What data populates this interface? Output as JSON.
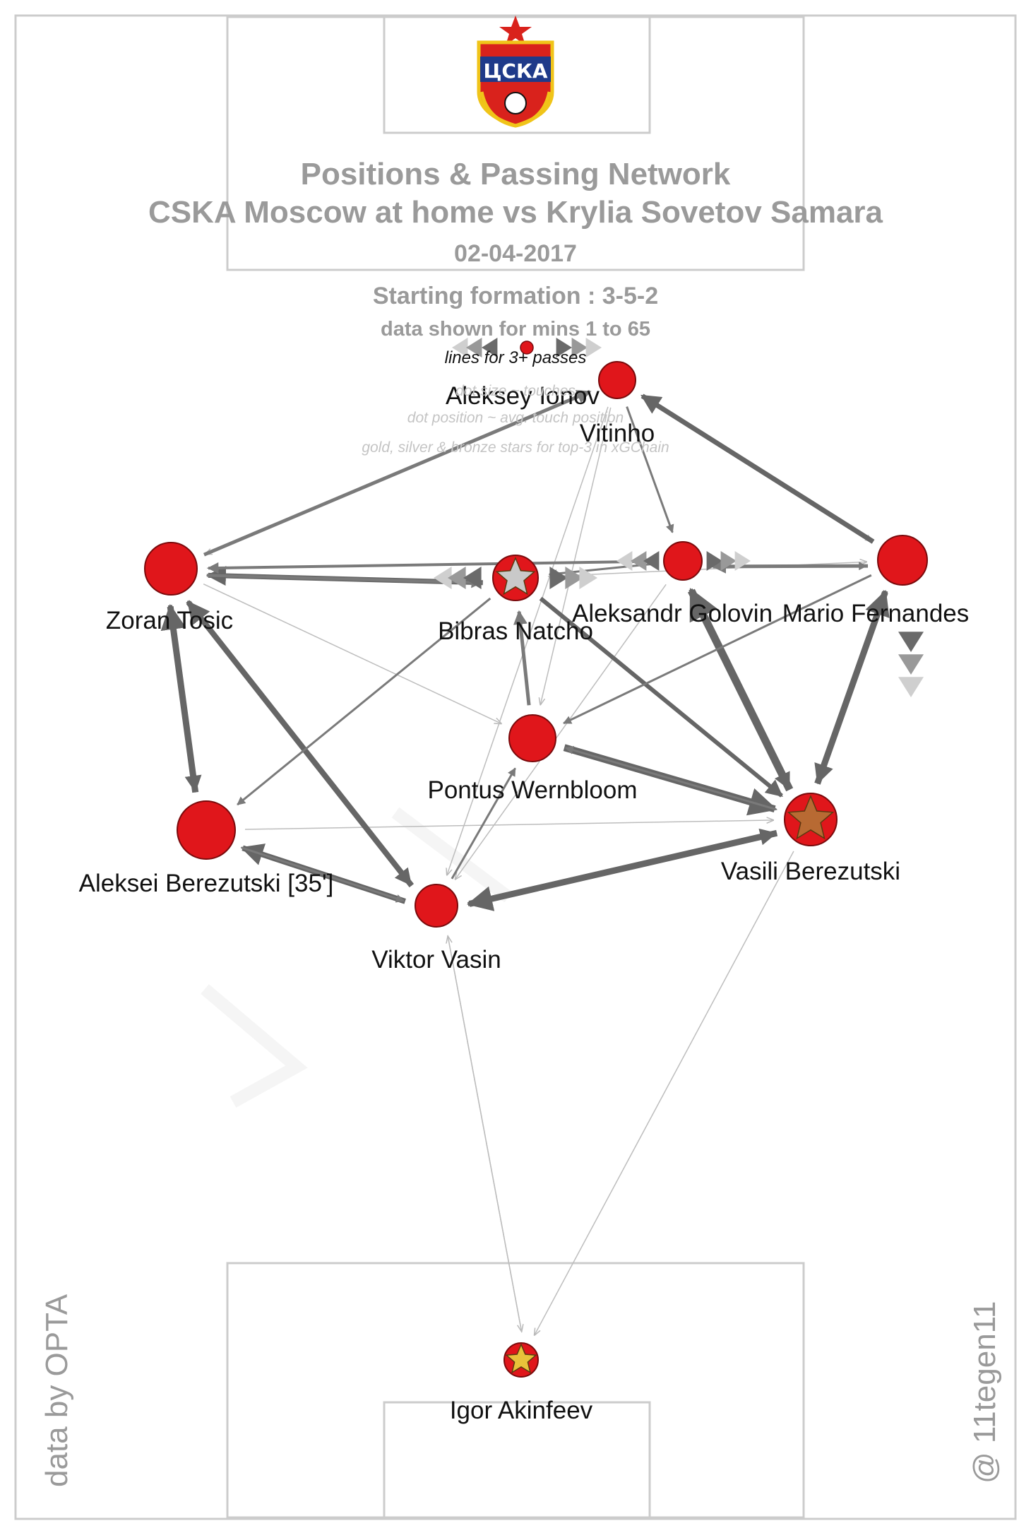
{
  "header": {
    "title": "Positions & Passing Network",
    "subtitle": "CSKA Moscow at home vs Krylia Sovetov Samara",
    "date": "02-04-2017",
    "formation": "Starting formation : 3-5-2",
    "minutes": "data shown for mins 1 to 65"
  },
  "legend": {
    "lines": "lines for 3+ passes",
    "dot_size": "dot size ~ touches",
    "dot_position": "dot position ~ avg. touch position",
    "stars": "gold, silver & bronze stars for top-3 in xGChain"
  },
  "credits": {
    "data_source": "data by OPTA",
    "author": "@ 11tegen11"
  },
  "logo": {
    "text": "ЦСКА",
    "colors": {
      "red": "#d9221c",
      "gold": "#f0c419",
      "blue": "#1f3a8a"
    }
  },
  "colors": {
    "node": "#e0161b",
    "node_stroke": "#7a0a0c",
    "title": "#9a9a9a",
    "pitch_line": "#cccccc",
    "edge": "#666666",
    "star_gold": "#e8c23a",
    "star_silver": "#c9c9c9",
    "star_bronze": "#b86a33"
  },
  "players": [
    {
      "id": "ionov",
      "name": "Aleksey Ionov",
      "touches": "low"
    },
    {
      "id": "vitinho",
      "name": "Vitinho",
      "touches": "low"
    },
    {
      "id": "tosic",
      "name": "Zoran Tosic",
      "touches": "high"
    },
    {
      "id": "natcho",
      "name": "Bibras Natcho",
      "touches": "medium",
      "star": "silver"
    },
    {
      "id": "golovin",
      "name": "Aleksandr Golovin",
      "touches": "medium"
    },
    {
      "id": "fernandes",
      "name": "Mario Fernandes",
      "touches": "high"
    },
    {
      "id": "wernbloom",
      "name": "Pontus Wernbloom",
      "touches": "medium"
    },
    {
      "id": "alberezutski",
      "name": "Aleksei Berezutski [35']",
      "touches": "high"
    },
    {
      "id": "vasberezutski",
      "name": "Vasili Berezutski",
      "touches": "high",
      "star": "bronze"
    },
    {
      "id": "vasin",
      "name": "Viktor Vasin",
      "touches": "medium"
    },
    {
      "id": "akinfeev",
      "name": "Igor Akinfeev",
      "touches": "low",
      "star": "gold"
    }
  ]
}
